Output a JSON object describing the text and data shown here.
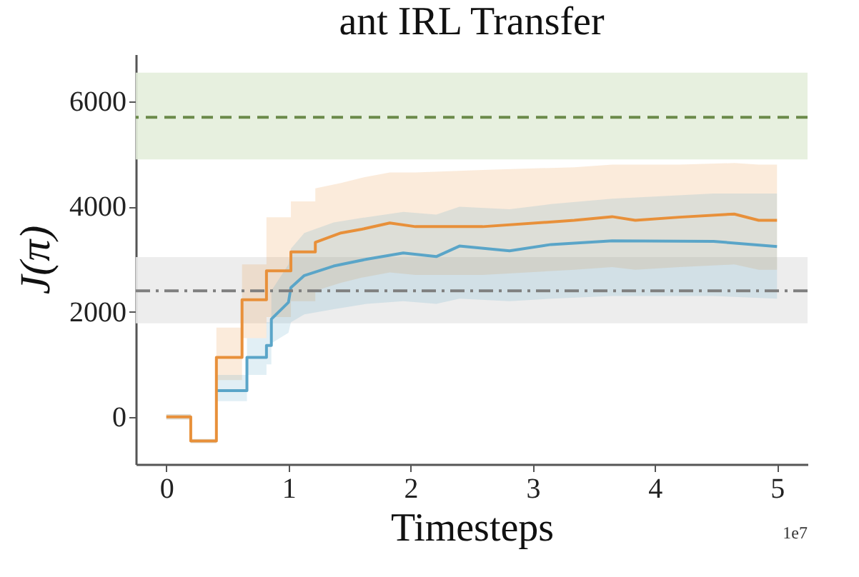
{
  "chart_data": {
    "type": "line",
    "title": "ant IRL Transfer",
    "xlabel": "Timesteps",
    "ylabel": "J(π)",
    "xlim": [
      -0.25,
      5.25
    ],
    "xticks": [
      0,
      1,
      2,
      3,
      4,
      5
    ],
    "ylim": [
      -900,
      6900
    ],
    "yticks": [
      0,
      2000,
      4000,
      6000
    ],
    "grid": false,
    "marker": "none",
    "line_style": "solid",
    "annotations": [
      "1e7"
    ],
    "bands": [
      {
        "axis": "y",
        "from": 4900,
        "to": 6550,
        "color": "#e4eedb"
      },
      {
        "axis": "y",
        "from": 1780,
        "to": 3040,
        "color": "#ebebeb"
      }
    ],
    "ref_lines": [
      {
        "axis": "y",
        "value": 5700,
        "color": "#6b8a4a",
        "line_style": "dashed"
      },
      {
        "axis": "y",
        "value": 2400,
        "color": "#7f7f7f",
        "line_style": "dashdot"
      }
    ],
    "series": [
      {
        "color": "#e8903a",
        "x": [
          0,
          0.2,
          0.2,
          0.41,
          0.41,
          0.62,
          0.62,
          0.82,
          0.82,
          1.02,
          1.02,
          1.22,
          1.22,
          1.43,
          1.6,
          1.83,
          2.04,
          2.59,
          3.34,
          3.65,
          3.84,
          4.2,
          4.65,
          4.85,
          5.0
        ],
        "values": [
          0,
          0,
          -460,
          -460,
          1130,
          1130,
          2230,
          2230,
          2780,
          2780,
          3140,
          3140,
          3320,
          3500,
          3570,
          3690,
          3620,
          3620,
          3740,
          3810,
          3740,
          3800,
          3860,
          3740,
          3740
        ],
        "lower": [
          -50,
          -50,
          -500,
          -500,
          700,
          700,
          1500,
          1500,
          1900,
          1900,
          2200,
          2200,
          2400,
          2550,
          2650,
          2750,
          2700,
          2700,
          2800,
          2850,
          2800,
          2850,
          2900,
          2800,
          2800
        ],
        "upper": [
          50,
          50,
          -420,
          -420,
          1700,
          1700,
          2900,
          2900,
          3800,
          3800,
          4100,
          4100,
          4350,
          4450,
          4550,
          4650,
          4650,
          4700,
          4750,
          4800,
          4800,
          4800,
          4830,
          4800,
          4800
        ]
      },
      {
        "color": "#5aa5c8",
        "x": [
          0,
          0.2,
          0.2,
          0.41,
          0.41,
          0.66,
          0.66,
          0.82,
          0.82,
          0.86,
          0.86,
          1.0,
          1.02,
          1.13,
          1.37,
          1.64,
          1.94,
          2.21,
          2.4,
          2.81,
          3.15,
          3.65,
          4.48,
          5.0
        ],
        "values": [
          null,
          null,
          null,
          null,
          500,
          500,
          1130,
          1130,
          1360,
          1360,
          1860,
          2180,
          2460,
          2690,
          2870,
          3000,
          3120,
          3050,
          3250,
          3160,
          3280,
          3350,
          3340,
          3240
        ],
        "lower": [
          -50,
          -50,
          -500,
          -500,
          300,
          300,
          800,
          800,
          1000,
          1000,
          1400,
          1600,
          1800,
          1950,
          2050,
          2150,
          2200,
          2150,
          2250,
          2200,
          2250,
          2300,
          2300,
          2250
        ],
        "upper": [
          50,
          50,
          -420,
          -420,
          800,
          800,
          1500,
          1500,
          1800,
          1800,
          2400,
          2900,
          3200,
          3500,
          3700,
          3800,
          3900,
          3850,
          4000,
          3950,
          4050,
          4150,
          4250,
          4250
        ]
      }
    ]
  }
}
